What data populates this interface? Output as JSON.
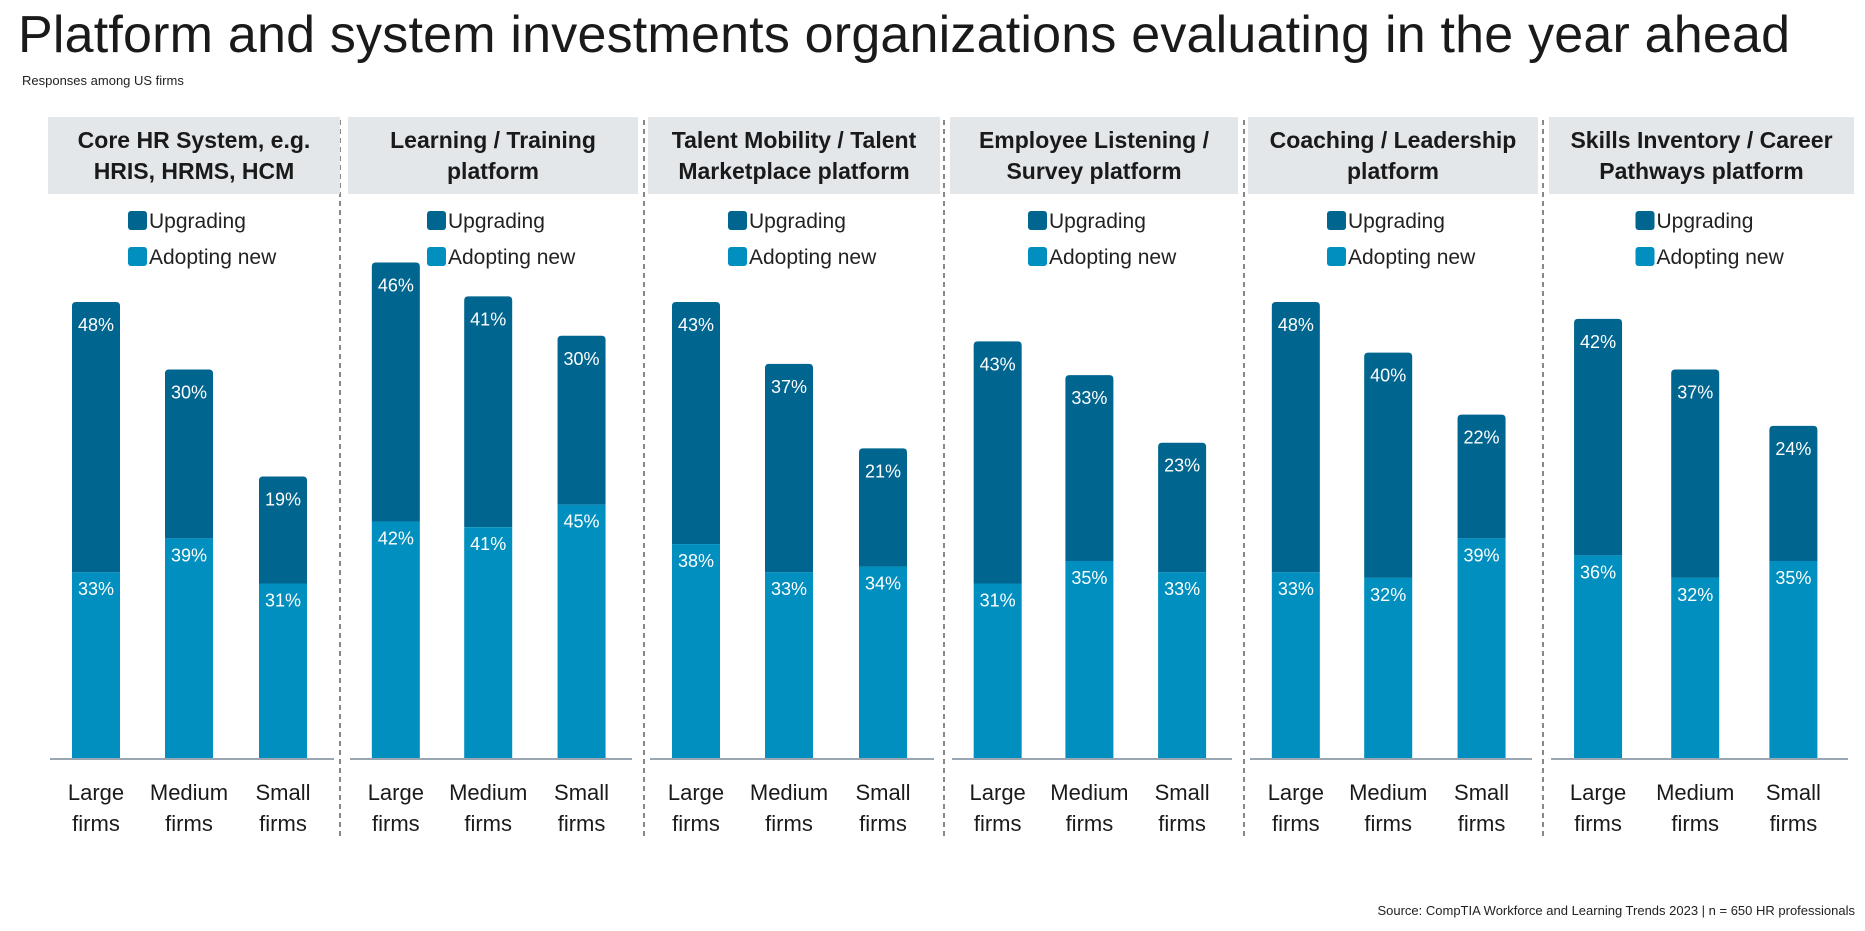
{
  "title": "Platform and system investments organizations evaluating in the year ahead",
  "subtitle": "Responses among US firms",
  "source": "Source: CompTIA Workforce and Learning Trends 2023 | n = 650 HR professionals",
  "colors": {
    "upgrading": "#00658F",
    "adopting": "#008FBE",
    "header_bg": "#E4E7EA",
    "axis": "#9AA7B2",
    "divider": "#555555"
  },
  "chart_data": [
    {
      "type": "bar",
      "stacked": true,
      "title_lines": [
        "Core HR System, e.g.",
        "HRIS, HRMS, HCM"
      ],
      "categories": [
        [
          "Large",
          "firms"
        ],
        [
          "Medium",
          "firms"
        ],
        [
          "Small",
          "firms"
        ]
      ],
      "series": [
        {
          "name": "Adopting new",
          "values": [
            33,
            39,
            31
          ]
        },
        {
          "name": "Upgrading",
          "values": [
            48,
            30,
            19
          ]
        }
      ],
      "legend": [
        "Upgrading",
        "Adopting new"
      ],
      "ylim": [
        0,
        100
      ],
      "grid": false
    },
    {
      "type": "bar",
      "stacked": true,
      "title_lines": [
        "Learning / Training",
        "platform"
      ],
      "categories": [
        [
          "Large",
          "firms"
        ],
        [
          "Medium",
          "firms"
        ],
        [
          "Small",
          "firms"
        ]
      ],
      "series": [
        {
          "name": "Adopting new",
          "values": [
            42,
            41,
            45
          ]
        },
        {
          "name": "Upgrading",
          "values": [
            46,
            41,
            30
          ]
        }
      ],
      "legend": [
        "Upgrading",
        "Adopting new"
      ],
      "ylim": [
        0,
        100
      ],
      "grid": false
    },
    {
      "type": "bar",
      "stacked": true,
      "title_lines": [
        "Talent Mobility / Talent",
        "Marketplace platform"
      ],
      "categories": [
        [
          "Large",
          "firms"
        ],
        [
          "Medium",
          "firms"
        ],
        [
          "Small",
          "firms"
        ]
      ],
      "series": [
        {
          "name": "Adopting new",
          "values": [
            38,
            33,
            34
          ]
        },
        {
          "name": "Upgrading",
          "values": [
            43,
            37,
            21
          ]
        }
      ],
      "legend": [
        "Upgrading",
        "Adopting new"
      ],
      "ylim": [
        0,
        100
      ],
      "grid": false
    },
    {
      "type": "bar",
      "stacked": true,
      "title_lines": [
        "Employee Listening /",
        "Survey platform"
      ],
      "categories": [
        [
          "Large",
          "firms"
        ],
        [
          "Medium",
          "firms"
        ],
        [
          "Small",
          "firms"
        ]
      ],
      "series": [
        {
          "name": "Adopting new",
          "values": [
            31,
            35,
            33
          ]
        },
        {
          "name": "Upgrading",
          "values": [
            43,
            33,
            23
          ]
        }
      ],
      "legend": [
        "Upgrading",
        "Adopting new"
      ],
      "ylim": [
        0,
        100
      ],
      "grid": false
    },
    {
      "type": "bar",
      "stacked": true,
      "title_lines": [
        "Coaching / Leadership",
        "platform"
      ],
      "categories": [
        [
          "Large",
          "firms"
        ],
        [
          "Medium",
          "firms"
        ],
        [
          "Small",
          "firms"
        ]
      ],
      "series": [
        {
          "name": "Adopting new",
          "values": [
            33,
            32,
            39
          ]
        },
        {
          "name": "Upgrading",
          "values": [
            48,
            40,
            22
          ]
        }
      ],
      "legend": [
        "Upgrading",
        "Adopting new"
      ],
      "ylim": [
        0,
        100
      ],
      "grid": false
    },
    {
      "type": "bar",
      "stacked": true,
      "title_lines": [
        "Skills Inventory / Career",
        "Pathways platform"
      ],
      "categories": [
        [
          "Large",
          "firms"
        ],
        [
          "Medium",
          "firms"
        ],
        [
          "Small",
          "firms"
        ]
      ],
      "series": [
        {
          "name": "Adopting new",
          "values": [
            36,
            32,
            35
          ]
        },
        {
          "name": "Upgrading",
          "values": [
            42,
            37,
            24
          ]
        }
      ],
      "legend": [
        "Upgrading",
        "Adopting new"
      ],
      "ylim": [
        0,
        100
      ],
      "grid": false
    }
  ]
}
